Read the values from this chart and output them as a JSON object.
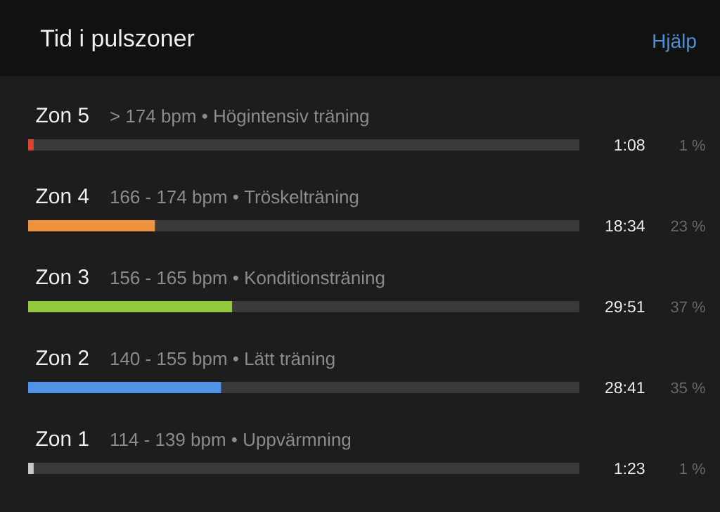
{
  "chart_data": {
    "type": "bar",
    "orientation": "horizontal",
    "title": "Tid i pulszoner",
    "categories": [
      "Zon 5",
      "Zon 4",
      "Zon 3",
      "Zon 2",
      "Zon 1"
    ],
    "values": [
      1,
      23,
      37,
      35,
      1
    ],
    "colors": [
      "#d9432f",
      "#ee9240",
      "#93c83f",
      "#5092e8",
      "#c8c8c8"
    ],
    "value_labels": [
      "1 %",
      "23 %",
      "37 %",
      "35 %",
      "1 %"
    ],
    "xlim": [
      0,
      100
    ],
    "annotations": [
      "Hjälp",
      "> 174 bpm • Högintensiv träning",
      "166 - 174 bpm • Tröskelträning",
      "156 - 165 bpm • Konditionsträning",
      "140 - 155 bpm • Lätt träning",
      "114 - 139 bpm • Uppvärmning",
      "1:08",
      "18:34",
      "29:51",
      "28:41",
      "1:23"
    ]
  }
}
